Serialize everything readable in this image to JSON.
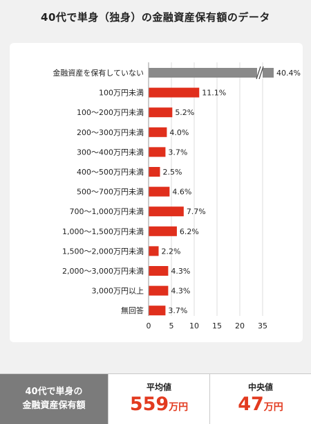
{
  "title": "40代で単身（独身）の金融資産保有額のデータ",
  "chart_data": {
    "type": "bar",
    "orientation": "horizontal",
    "categories": [
      "金融資産を保有していない",
      "100万円未満",
      "100～200万円未満",
      "200～300万円未満",
      "300～400万円未満",
      "400～500万円未満",
      "500～700万円未満",
      "700～1,000万円未満",
      "1,000～1,500万円未満",
      "1,500～2,000万円未満",
      "2,000～3,000万円未満",
      "3,000万円以上",
      "無回答"
    ],
    "values": [
      40.4,
      11.1,
      5.2,
      4.0,
      3.7,
      2.5,
      4.6,
      7.7,
      6.2,
      2.2,
      4.3,
      4.3,
      3.7
    ],
    "value_labels": [
      "40.4%",
      "11.1%",
      "5.2%",
      "4.0%",
      "3.7%",
      "2.5%",
      "4.6%",
      "7.7%",
      "6.2%",
      "2.2%",
      "4.3%",
      "4.3%",
      "3.7%"
    ],
    "x_ticks": [
      0,
      5,
      10,
      15,
      20,
      35
    ],
    "axis_break": true,
    "bar_colors": {
      "default": "#e02f1c",
      "broken": "#8a8a8a"
    }
  },
  "summary": {
    "label_line1": "40代で単身の",
    "label_line2": "金融資産保有額",
    "stats": [
      {
        "label": "平均値",
        "value": "559",
        "unit": "万円"
      },
      {
        "label": "中央値",
        "value": "47",
        "unit": "万円"
      }
    ],
    "accent_color": "#e23a1f"
  }
}
